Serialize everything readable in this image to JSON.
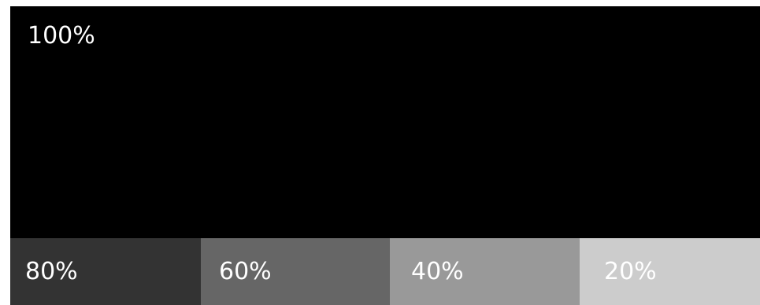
{
  "main": {
    "label": "100%",
    "color": "#000000"
  },
  "tints": [
    {
      "label": "80%",
      "color": "#333333"
    },
    {
      "label": "60%",
      "color": "#666666"
    },
    {
      "label": "40%",
      "color": "#999999"
    },
    {
      "label": "20%",
      "color": "#cccccc"
    }
  ]
}
